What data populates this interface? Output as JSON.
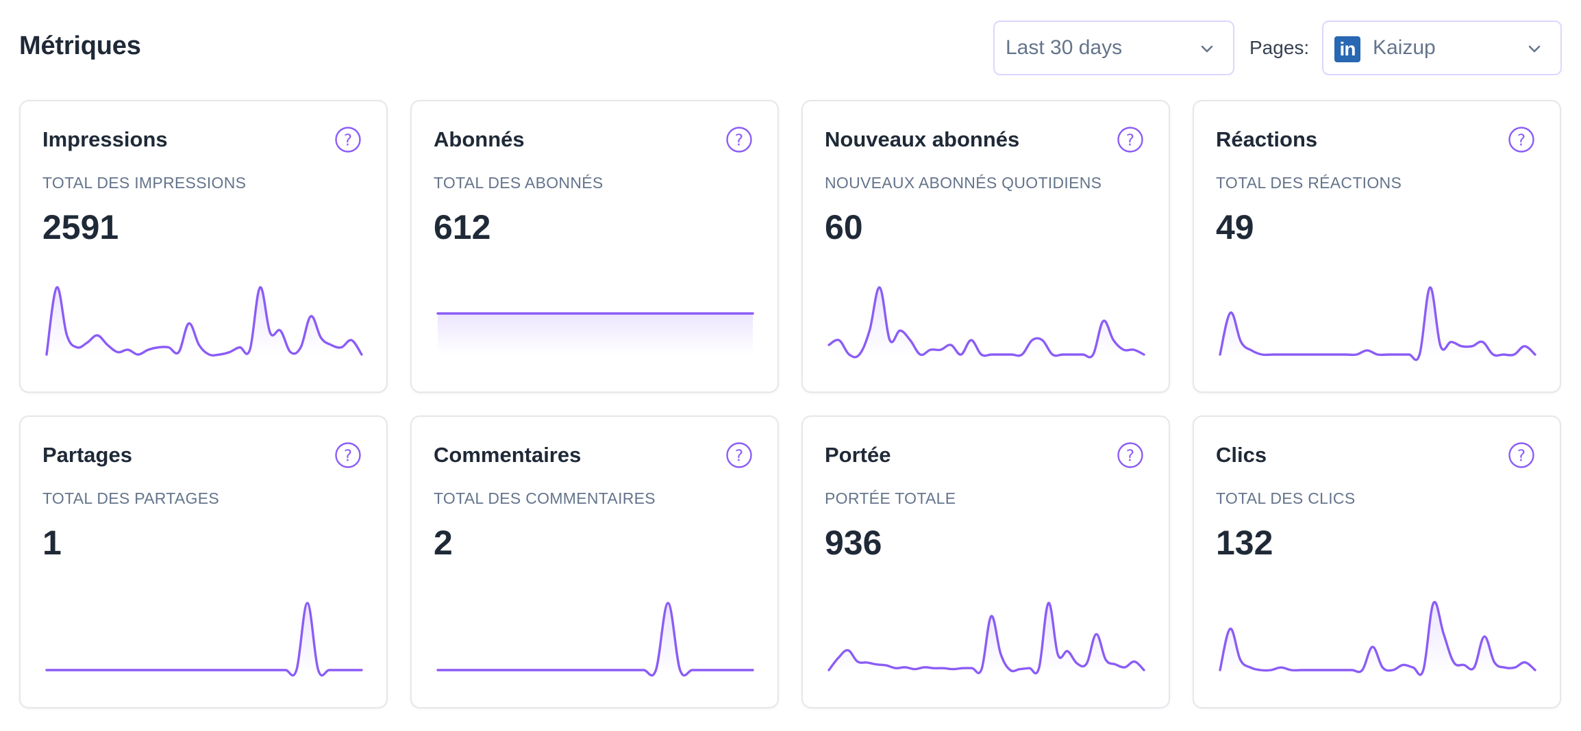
{
  "header": {
    "title": "Métriques",
    "range_select": {
      "value": "Last 30 days"
    },
    "pages_label": "Pages:",
    "pages_select": {
      "value": "Kaizup",
      "logo_text": "in",
      "logo_color": "#2867b2"
    }
  },
  "colors": {
    "accent": "#8b5cf6",
    "border": "#e5e7eb",
    "select_border": "#ddd6fe",
    "muted_text": "#64748b"
  },
  "icons": {
    "help": "question-circle-icon",
    "chevron": "chevron-down-icon",
    "pages_logo": "linkedin-icon"
  },
  "cards": [
    {
      "title": "Impressions",
      "subtitle": "TOTAL DES IMPRESSIONS",
      "value": "2591",
      "trend": [
        3,
        31,
        11,
        6,
        8,
        11,
        7,
        4,
        5,
        3,
        5,
        6,
        6,
        4,
        16,
        7,
        3,
        3,
        4,
        6,
        5,
        31,
        12,
        13,
        4,
        6,
        19,
        10,
        7,
        6,
        9,
        3
      ]
    },
    {
      "title": "Abonnés",
      "subtitle": "TOTAL DES ABONNÉS",
      "value": "612",
      "trend": [
        612,
        612,
        612,
        612,
        612,
        612,
        612,
        612,
        612,
        612,
        612,
        612,
        612,
        612,
        612,
        612,
        612,
        612,
        612,
        612,
        612,
        612,
        612,
        612,
        612,
        612,
        612,
        612,
        612,
        612
      ],
      "trend_range": [
        0,
        1000
      ]
    },
    {
      "title": "Nouveaux abonnés",
      "subtitle": "NOUVEAUX ABONNÉS QUOTIDIENS",
      "value": "60",
      "trend": [
        3,
        4,
        1,
        1,
        6,
        15,
        4,
        6,
        4,
        1,
        2,
        2,
        3,
        1,
        4,
        1,
        1,
        1,
        1,
        1,
        4,
        4,
        1,
        1,
        1,
        1,
        1,
        8,
        4,
        2,
        2,
        1
      ]
    },
    {
      "title": "Réactions",
      "subtitle": "TOTAL DES RÉACTIONS",
      "value": "49",
      "trend": [
        0,
        10,
        3,
        1,
        0,
        0,
        0,
        0,
        0,
        0,
        0,
        0,
        0,
        0,
        1,
        0,
        0,
        0,
        0,
        0,
        16,
        2,
        3,
        2,
        2,
        3,
        0,
        0,
        0,
        2,
        0
      ]
    },
    {
      "title": "Partages",
      "subtitle": "TOTAL DES PARTAGES",
      "value": "1",
      "trend": [
        0,
        0,
        0,
        0,
        0,
        0,
        0,
        0,
        0,
        0,
        0,
        0,
        0,
        0,
        0,
        0,
        0,
        0,
        0,
        0,
        0,
        0,
        0,
        0,
        1,
        0,
        0,
        0,
        0,
        0
      ]
    },
    {
      "title": "Commentaires",
      "subtitle": "TOTAL DES COMMENTAIRES",
      "value": "2",
      "trend": [
        0,
        0,
        0,
        0,
        0,
        0,
        0,
        0,
        0,
        0,
        0,
        0,
        0,
        0,
        0,
        0,
        0,
        0,
        0,
        2,
        0,
        0,
        0,
        0,
        0,
        0,
        0
      ]
    },
    {
      "title": "Portée",
      "subtitle": "PORTÉE TOTALE",
      "value": "936",
      "trend": [
        2,
        15,
        23,
        11,
        10,
        8,
        7,
        4,
        5,
        3,
        5,
        4,
        4,
        3,
        4,
        4,
        3,
        59,
        19,
        2,
        3,
        4,
        4,
        73,
        18,
        22,
        9,
        9,
        40,
        13,
        8,
        5,
        11,
        2
      ]
    },
    {
      "title": "Clics",
      "subtitle": "TOTAL DES CLICS",
      "value": "132",
      "trend": [
        1,
        17,
        5,
        2,
        1,
        1,
        2,
        1,
        1,
        1,
        1,
        1,
        1,
        1,
        1,
        10,
        2,
        1,
        3,
        2,
        1,
        27,
        15,
        4,
        3,
        2,
        14,
        4,
        2,
        2,
        4,
        1
      ]
    }
  ]
}
